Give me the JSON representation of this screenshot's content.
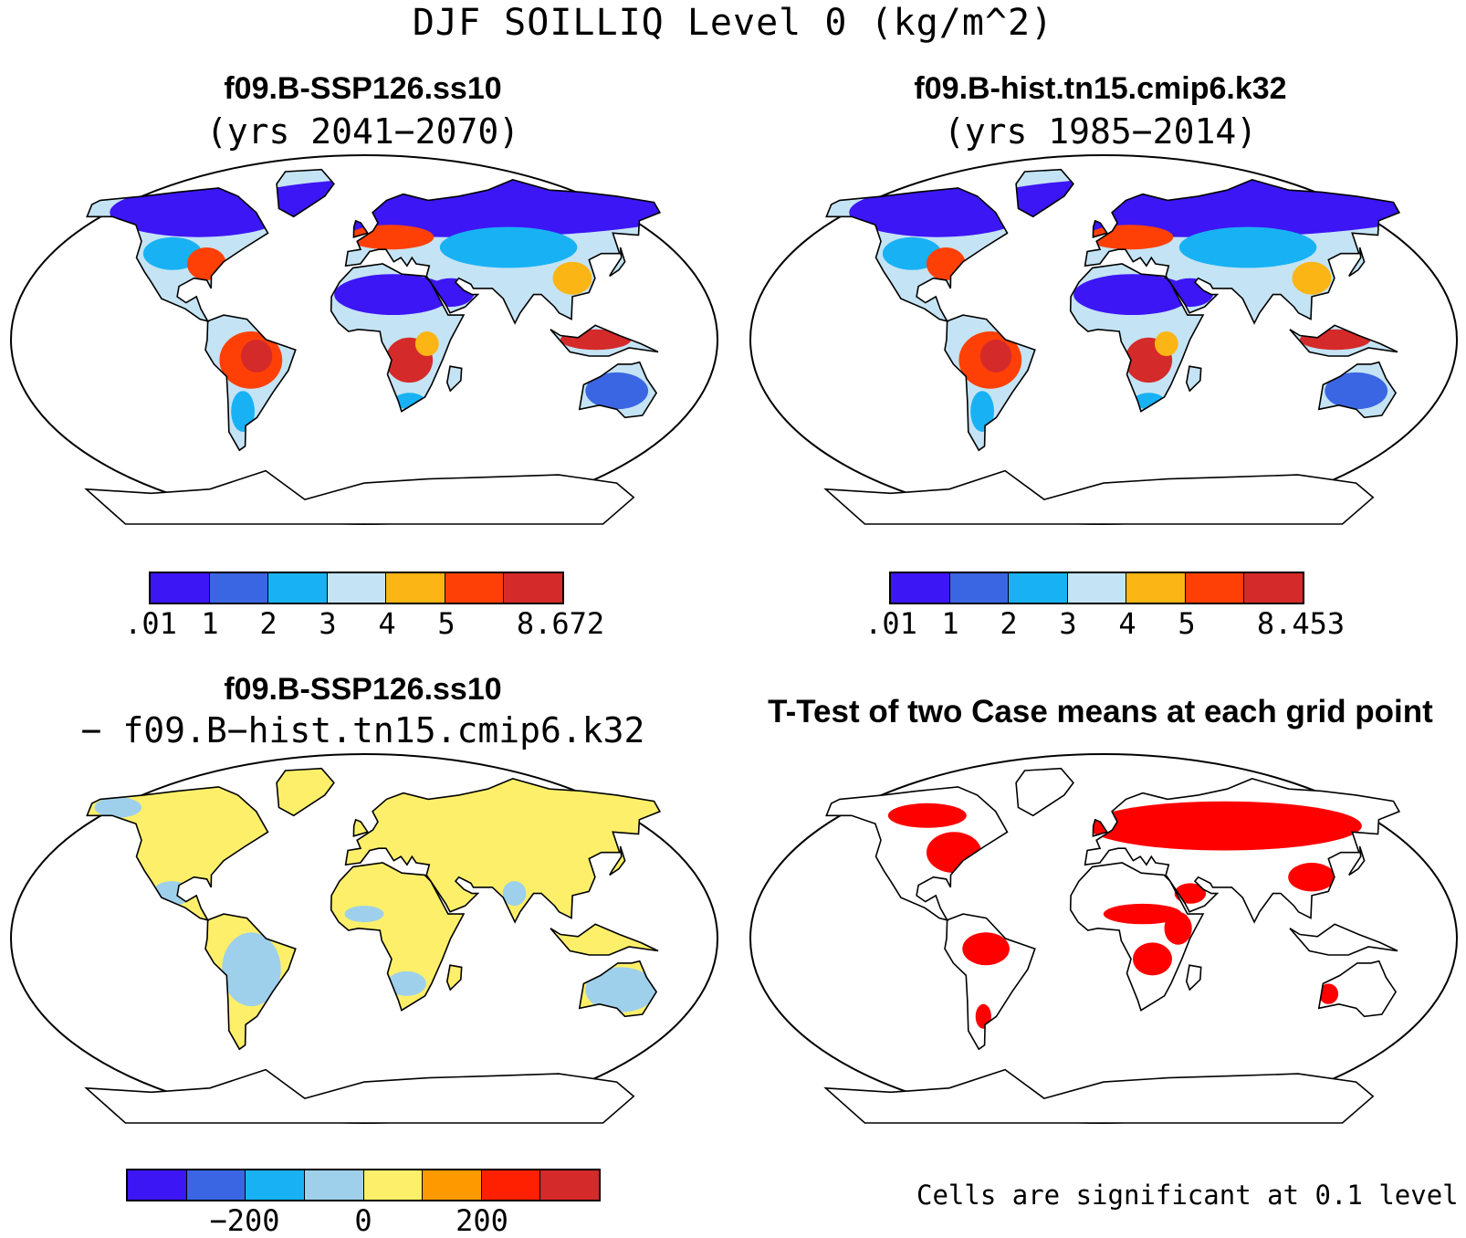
{
  "figure": {
    "title": "DJF SOILLIQ Level 0 (kg/m^2)"
  },
  "panels": {
    "case1": {
      "title": "f09.B-SSP126.ss10",
      "subtitle": "(yrs 2041−2070)",
      "colorbar": {
        "colors": [
          "#3c16f5",
          "#3b66e3",
          "#18b2f4",
          "#c4e3f4",
          "#fbb514",
          "#fe4006",
          "#d52a2a"
        ],
        "labels": [
          ".01",
          "1",
          "2",
          "3",
          "4",
          "5",
          "8.672"
        ]
      }
    },
    "case2": {
      "title": "f09.B-hist.tn15.cmip6.k32",
      "subtitle": "(yrs 1985−2014)",
      "colorbar": {
        "colors": [
          "#3c16f5",
          "#3b66e3",
          "#18b2f4",
          "#c4e3f4",
          "#fbb514",
          "#fe4006",
          "#d52a2a"
        ],
        "labels": [
          ".01",
          "1",
          "2",
          "3",
          "4",
          "5",
          "8.453"
        ]
      }
    },
    "difference": {
      "title": "f09.B-SSP126.ss10",
      "subtitle": "− f09.B−hist.tn15.cmip6.k32",
      "colorbar": {
        "colors": [
          "#3c16f5",
          "#3b66e3",
          "#18b2f4",
          "#9ed0ec",
          "#fdef6a",
          "#fe9a00",
          "#fe2000",
          "#d52a2a"
        ],
        "labels": [
          "−200",
          "0",
          "200"
        ]
      }
    },
    "ttest": {
      "title": "T-Test of two Case means at each grid point",
      "note": "Cells are significant at 0.1 level",
      "significant_color": "#ff0000"
    }
  },
  "map_colors": {
    "land_dry": "#3c16f5",
    "land_mid": "#18b2f4",
    "land_wet": "#fe4006",
    "land_wettest": "#d52a2a",
    "diff_pos": "#fdef6a",
    "diff_neg": "#9ed0ec",
    "ocean": "#ffffff"
  }
}
